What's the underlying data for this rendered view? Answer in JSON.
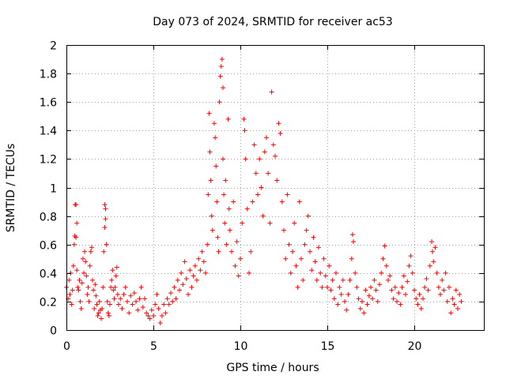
{
  "chart_data": {
    "type": "scatter",
    "title": "Day 073 of 2024, SRMTID for receiver ac53",
    "xlabel": "GPS time / hours",
    "ylabel": "SRMTID / TECUs",
    "xlim": [
      0,
      24
    ],
    "ylim": [
      0,
      2
    ],
    "xticks": [
      0,
      5,
      10,
      15,
      20
    ],
    "xtick_labels": [
      "0",
      "5",
      "10",
      "15",
      "20"
    ],
    "yticks": [
      0,
      0.2,
      0.4,
      0.6,
      0.8,
      1,
      1.2,
      1.4,
      1.6,
      1.8,
      2
    ],
    "ytick_labels": [
      "0",
      "0.2",
      "0.4",
      "0.6",
      "0.8",
      "1",
      "1.2",
      "1.4",
      "1.6",
      "1.8",
      "2"
    ],
    "grid": true,
    "marker": "plus",
    "series": [
      {
        "name": "SRMTID",
        "color": "#ff0000",
        "points": [
          [
            0.0,
            0.3
          ],
          [
            0.1,
            0.22
          ],
          [
            0.15,
            0.35
          ],
          [
            0.2,
            0.25
          ],
          [
            0.25,
            0.4
          ],
          [
            0.3,
            0.18
          ],
          [
            0.35,
            0.28
          ],
          [
            0.4,
            0.45
          ],
          [
            0.45,
            0.6
          ],
          [
            0.48,
            0.66
          ],
          [
            0.5,
            0.88
          ],
          [
            0.55,
            0.88
          ],
          [
            0.55,
            0.65
          ],
          [
            0.6,
            0.75
          ],
          [
            0.6,
            0.42
          ],
          [
            0.65,
            0.3
          ],
          [
            0.7,
            0.28
          ],
          [
            0.75,
            0.35
          ],
          [
            0.8,
            0.2
          ],
          [
            0.85,
            0.15
          ],
          [
            0.9,
            0.33
          ],
          [
            0.95,
            0.5
          ],
          [
            1.0,
            0.4
          ],
          [
            1.05,
            0.55
          ],
          [
            1.1,
            0.48
          ],
          [
            1.15,
            0.38
          ],
          [
            1.2,
            0.25
          ],
          [
            1.25,
            0.3
          ],
          [
            1.3,
            0.2
          ],
          [
            1.35,
            0.45
          ],
          [
            1.4,
            0.55
          ],
          [
            1.45,
            0.58
          ],
          [
            1.5,
            0.35
          ],
          [
            1.55,
            0.28
          ],
          [
            1.6,
            0.15
          ],
          [
            1.65,
            0.32
          ],
          [
            1.7,
            0.24
          ],
          [
            1.75,
            0.18
          ],
          [
            1.8,
            0.1
          ],
          [
            1.85,
            0.12
          ],
          [
            1.9,
            0.2
          ],
          [
            1.95,
            0.14
          ],
          [
            2.0,
            0.08
          ],
          [
            2.05,
            0.15
          ],
          [
            2.1,
            0.3
          ],
          [
            2.15,
            0.55
          ],
          [
            2.2,
            0.72
          ],
          [
            2.2,
            0.88
          ],
          [
            2.25,
            0.85
          ],
          [
            2.25,
            0.78
          ],
          [
            2.3,
            0.6
          ],
          [
            2.35,
            0.2
          ],
          [
            2.4,
            0.12
          ],
          [
            2.45,
            0.1
          ],
          [
            2.5,
            0.18
          ],
          [
            2.55,
            0.3
          ],
          [
            2.6,
            0.35
          ],
          [
            2.65,
            0.42
          ],
          [
            2.7,
            0.28
          ],
          [
            2.75,
            0.22
          ],
          [
            2.8,
            0.3
          ],
          [
            2.85,
            0.38
          ],
          [
            2.9,
            0.44
          ],
          [
            2.95,
            0.25
          ],
          [
            3.0,
            0.18
          ],
          [
            3.1,
            0.22
          ],
          [
            3.2,
            0.15
          ],
          [
            3.3,
            0.25
          ],
          [
            3.4,
            0.3
          ],
          [
            3.5,
            0.2
          ],
          [
            3.6,
            0.12
          ],
          [
            3.7,
            0.24
          ],
          [
            3.8,
            0.18
          ],
          [
            3.9,
            0.26
          ],
          [
            4.0,
            0.2
          ],
          [
            4.1,
            0.14
          ],
          [
            4.2,
            0.22
          ],
          [
            4.3,
            0.3
          ],
          [
            4.4,
            0.16
          ],
          [
            4.5,
            0.22
          ],
          [
            4.6,
            0.12
          ],
          [
            4.7,
            0.1
          ],
          [
            4.8,
            0.08
          ],
          [
            4.9,
            0.14
          ],
          [
            5.0,
            0.1
          ],
          [
            5.1,
            0.18
          ],
          [
            5.2,
            0.25
          ],
          [
            5.3,
            0.15
          ],
          [
            5.4,
            0.05
          ],
          [
            5.5,
            0.1
          ],
          [
            5.6,
            0.18
          ],
          [
            5.7,
            0.12
          ],
          [
            5.8,
            0.22
          ],
          [
            5.9,
            0.18
          ],
          [
            6.0,
            0.26
          ],
          [
            6.1,
            0.2
          ],
          [
            6.2,
            0.3
          ],
          [
            6.3,
            0.22
          ],
          [
            6.4,
            0.35
          ],
          [
            6.5,
            0.28
          ],
          [
            6.6,
            0.4
          ],
          [
            6.7,
            0.32
          ],
          [
            6.8,
            0.48
          ],
          [
            6.9,
            0.36
          ],
          [
            7.0,
            0.25
          ],
          [
            7.1,
            0.42
          ],
          [
            7.2,
            0.3
          ],
          [
            7.3,
            0.38
          ],
          [
            7.4,
            0.45
          ],
          [
            7.5,
            0.35
          ],
          [
            7.6,
            0.5
          ],
          [
            7.7,
            0.42
          ],
          [
            7.8,
            0.55
          ],
          [
            7.9,
            0.48
          ],
          [
            8.0,
            0.4
          ],
          [
            8.1,
            0.6
          ],
          [
            8.15,
            0.95
          ],
          [
            8.2,
            1.52
          ],
          [
            8.25,
            1.25
          ],
          [
            8.3,
            1.05
          ],
          [
            8.35,
            0.8
          ],
          [
            8.4,
            0.7
          ],
          [
            8.5,
            1.45
          ],
          [
            8.55,
            1.35
          ],
          [
            8.6,
            1.15
          ],
          [
            8.65,
            0.9
          ],
          [
            8.7,
            0.65
          ],
          [
            8.75,
            0.55
          ],
          [
            8.8,
            1.6
          ],
          [
            8.85,
            1.78
          ],
          [
            8.9,
            1.85
          ],
          [
            8.95,
            1.9
          ],
          [
            9.0,
            1.7
          ],
          [
            9.0,
            1.2
          ],
          [
            9.05,
            0.95
          ],
          [
            9.1,
            0.75
          ],
          [
            9.15,
            1.05
          ],
          [
            9.2,
            0.6
          ],
          [
            9.3,
            1.48
          ],
          [
            9.35,
            0.85
          ],
          [
            9.4,
            0.7
          ],
          [
            9.5,
            0.55
          ],
          [
            9.6,
            0.9
          ],
          [
            9.7,
            0.45
          ],
          [
            9.8,
            0.62
          ],
          [
            9.9,
            0.38
          ],
          [
            10.0,
            0.5
          ],
          [
            10.1,
            0.75
          ],
          [
            10.2,
            1.48
          ],
          [
            10.25,
            1.4
          ],
          [
            10.3,
            1.2
          ],
          [
            10.4,
            0.85
          ],
          [
            10.5,
            0.4
          ],
          [
            10.6,
            0.55
          ],
          [
            10.7,
            0.9
          ],
          [
            10.8,
            1.3
          ],
          [
            10.9,
            1.1
          ],
          [
            11.0,
            0.95
          ],
          [
            11.1,
            1.2
          ],
          [
            11.2,
            1.0
          ],
          [
            11.3,
            0.8
          ],
          [
            11.4,
            1.25
          ],
          [
            11.5,
            1.35
          ],
          [
            11.6,
            1.1
          ],
          [
            11.7,
            0.75
          ],
          [
            11.8,
            1.67
          ],
          [
            11.9,
            1.3
          ],
          [
            12.0,
            1.22
          ],
          [
            12.1,
            1.05
          ],
          [
            12.2,
            1.45
          ],
          [
            12.3,
            1.38
          ],
          [
            12.4,
            0.9
          ],
          [
            12.5,
            0.7
          ],
          [
            12.6,
            0.5
          ],
          [
            12.7,
            0.95
          ],
          [
            12.8,
            0.6
          ],
          [
            12.9,
            0.4
          ],
          [
            13.0,
            0.55
          ],
          [
            13.1,
            0.75
          ],
          [
            13.2,
            0.45
          ],
          [
            13.3,
            0.3
          ],
          [
            13.4,
            0.9
          ],
          [
            13.5,
            0.5
          ],
          [
            13.6,
            0.35
          ],
          [
            13.7,
            0.6
          ],
          [
            13.8,
            0.7
          ],
          [
            13.9,
            0.8
          ],
          [
            14.0,
            0.55
          ],
          [
            14.1,
            0.42
          ],
          [
            14.2,
            0.65
          ],
          [
            14.3,
            0.48
          ],
          [
            14.4,
            0.35
          ],
          [
            14.5,
            0.58
          ],
          [
            14.6,
            0.4
          ],
          [
            14.7,
            0.3
          ],
          [
            14.8,
            0.5
          ],
          [
            14.9,
            0.38
          ],
          [
            15.0,
            0.3
          ],
          [
            15.1,
            0.45
          ],
          [
            15.2,
            0.28
          ],
          [
            15.3,
            0.35
          ],
          [
            15.4,
            0.22
          ],
          [
            15.5,
            0.4
          ],
          [
            15.6,
            0.18
          ],
          [
            15.7,
            0.3
          ],
          [
            15.8,
            0.25
          ],
          [
            15.9,
            0.35
          ],
          [
            16.0,
            0.2
          ],
          [
            16.1,
            0.14
          ],
          [
            16.2,
            0.25
          ],
          [
            16.3,
            0.35
          ],
          [
            16.4,
            0.5
          ],
          [
            16.45,
            0.67
          ],
          [
            16.5,
            0.62
          ],
          [
            16.6,
            0.4
          ],
          [
            16.7,
            0.3
          ],
          [
            16.8,
            0.22
          ],
          [
            16.9,
            0.15
          ],
          [
            17.0,
            0.2
          ],
          [
            17.1,
            0.12
          ],
          [
            17.2,
            0.28
          ],
          [
            17.3,
            0.18
          ],
          [
            17.4,
            0.24
          ],
          [
            17.5,
            0.3
          ],
          [
            17.6,
            0.22
          ],
          [
            17.7,
            0.35
          ],
          [
            17.8,
            0.28
          ],
          [
            17.9,
            0.2
          ],
          [
            18.0,
            0.32
          ],
          [
            18.1,
            0.4
          ],
          [
            18.2,
            0.5
          ],
          [
            18.3,
            0.59
          ],
          [
            18.4,
            0.45
          ],
          [
            18.5,
            0.35
          ],
          [
            18.6,
            0.38
          ],
          [
            18.7,
            0.28
          ],
          [
            18.8,
            0.22
          ],
          [
            18.9,
            0.3
          ],
          [
            19.0,
            0.2
          ],
          [
            19.1,
            0.26
          ],
          [
            19.2,
            0.18
          ],
          [
            19.3,
            0.3
          ],
          [
            19.4,
            0.38
          ],
          [
            19.5,
            0.25
          ],
          [
            19.6,
            0.34
          ],
          [
            19.7,
            0.45
          ],
          [
            19.8,
            0.52
          ],
          [
            19.9,
            0.4
          ],
          [
            20.0,
            0.28
          ],
          [
            20.1,
            0.22
          ],
          [
            20.2,
            0.18
          ],
          [
            20.3,
            0.25
          ],
          [
            20.4,
            0.15
          ],
          [
            20.5,
            0.22
          ],
          [
            20.6,
            0.3
          ],
          [
            20.7,
            0.36
          ],
          [
            20.8,
            0.28
          ],
          [
            20.9,
            0.45
          ],
          [
            21.0,
            0.62
          ],
          [
            21.05,
            0.55
          ],
          [
            21.1,
            0.48
          ],
          [
            21.2,
            0.58
          ],
          [
            21.3,
            0.4
          ],
          [
            21.4,
            0.3
          ],
          [
            21.5,
            0.25
          ],
          [
            21.6,
            0.35
          ],
          [
            21.7,
            0.28
          ],
          [
            21.8,
            0.4
          ],
          [
            21.9,
            0.2
          ],
          [
            22.0,
            0.3
          ],
          [
            22.1,
            0.12
          ],
          [
            22.2,
            0.22
          ],
          [
            22.3,
            0.18
          ],
          [
            22.4,
            0.28
          ],
          [
            22.5,
            0.15
          ],
          [
            22.6,
            0.25
          ],
          [
            22.7,
            0.2
          ]
        ]
      }
    ]
  }
}
